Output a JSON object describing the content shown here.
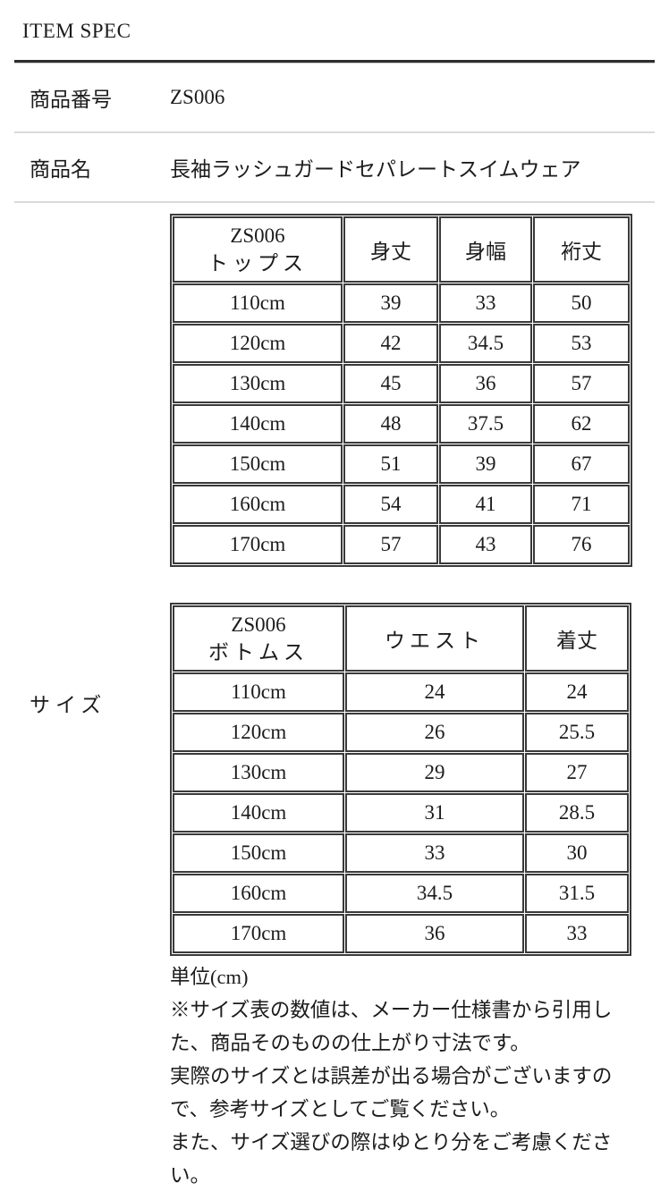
{
  "page": {
    "title": "ITEM SPEC"
  },
  "spec_rows": [
    {
      "label": "商品番号",
      "value": "ZS006"
    },
    {
      "label": "商品名",
      "value": "長袖ラッシュガードセパレートスイムウェア"
    }
  ],
  "size_section": {
    "label": "サイズ",
    "tables": [
      {
        "name": "tops",
        "header": {
          "line1": "ZS006",
          "line2": "トップス"
        },
        "columns": [
          "身丈",
          "身幅",
          "裄丈"
        ],
        "rows": [
          {
            "size": "110cm",
            "values": [
              "39",
              "33",
              "50"
            ]
          },
          {
            "size": "120cm",
            "values": [
              "42",
              "34.5",
              "53"
            ]
          },
          {
            "size": "130cm",
            "values": [
              "45",
              "36",
              "57"
            ]
          },
          {
            "size": "140cm",
            "values": [
              "48",
              "37.5",
              "62"
            ]
          },
          {
            "size": "150cm",
            "values": [
              "51",
              "39",
              "67"
            ]
          },
          {
            "size": "160cm",
            "values": [
              "54",
              "41",
              "71"
            ]
          },
          {
            "size": "170cm",
            "values": [
              "57",
              "43",
              "76"
            ]
          }
        ]
      },
      {
        "name": "bottoms",
        "header": {
          "line1": "ZS006",
          "line2": "ボトムス"
        },
        "columns": [
          "ウエスト",
          "着丈"
        ],
        "rows": [
          {
            "size": "110cm",
            "values": [
              "24",
              "24"
            ]
          },
          {
            "size": "120cm",
            "values": [
              "26",
              "25.5"
            ]
          },
          {
            "size": "130cm",
            "values": [
              "29",
              "27"
            ]
          },
          {
            "size": "140cm",
            "values": [
              "31",
              "28.5"
            ]
          },
          {
            "size": "150cm",
            "values": [
              "33",
              "30"
            ]
          },
          {
            "size": "160cm",
            "values": [
              "34.5",
              "31.5"
            ]
          },
          {
            "size": "170cm",
            "values": [
              "36",
              "33"
            ]
          }
        ]
      }
    ],
    "unit_note": "単位(cm)",
    "notes": [
      "※サイズ表の数値は、メーカー仕様書から引用した、商品そのものの仕上がり寸法です。",
      "実際のサイズとは誤差が出る場合がございますので、参考サイズとしてご覧ください。",
      "また、サイズ選びの際はゆとり分をご考慮ください。"
    ]
  }
}
